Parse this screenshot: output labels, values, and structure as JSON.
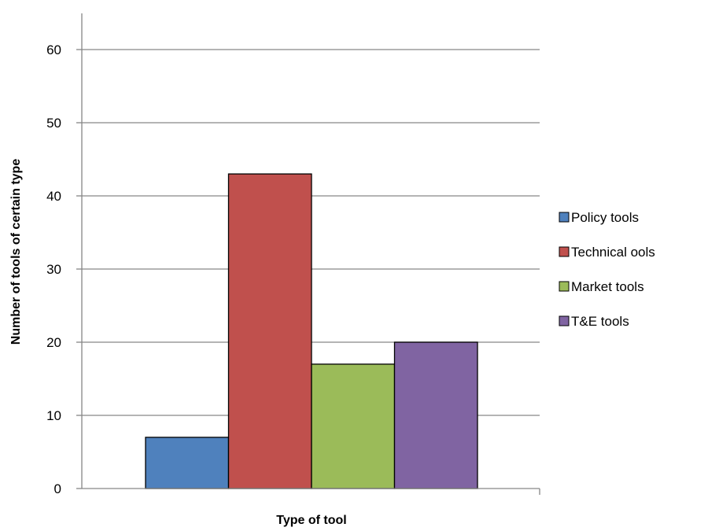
{
  "chart_data": {
    "type": "bar",
    "xlabel": "Type of tool",
    "ylabel": "Number of tools of certain type",
    "ylim": [
      0,
      65
    ],
    "yticks": [
      0,
      10,
      20,
      30,
      40,
      50,
      60
    ],
    "grid": true,
    "legend_position": "right",
    "series": [
      {
        "name": "Policy tools",
        "values": [
          7
        ],
        "color": "#4F81BD"
      },
      {
        "name": "Technical ools",
        "values": [
          43
        ],
        "color": "#C0504D"
      },
      {
        "name": "Market tools",
        "values": [
          17
        ],
        "color": "#9BBB59"
      },
      {
        "name": "T&E tools",
        "values": [
          20
        ],
        "color": "#8064A2"
      }
    ]
  }
}
